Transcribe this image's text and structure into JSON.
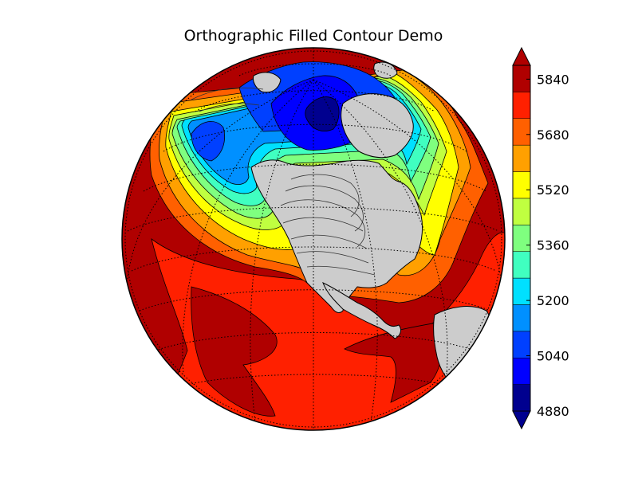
{
  "title": "Orthographic Filled Contour Demo",
  "colorbar": {
    "levels": [
      4880,
      4920,
      4960,
      5000,
      5040,
      5080,
      5120,
      5160,
      5200,
      5240,
      5280,
      5320,
      5360,
      5400,
      5440,
      5480,
      5520,
      5560,
      5600,
      5640,
      5680,
      5720,
      5760,
      5800,
      5840,
      5880
    ],
    "tick_labels": [
      "4880",
      "5040",
      "5200",
      "5360",
      "5520",
      "5680",
      "5840"
    ],
    "band_colors": [
      "#00008f",
      "#0000ff",
      "#0040ff",
      "#0090ff",
      "#00e0ff",
      "#40ffc0",
      "#7fff7f",
      "#c0ff40",
      "#ffff00",
      "#ffa000",
      "#ff6000",
      "#ff2000",
      "#b00000"
    ],
    "under_color": "#00008f",
    "over_color": "#b00000",
    "extend": "both"
  },
  "map": {
    "projection": "orthographic",
    "land_color": "#cccccc",
    "graticule": "dotted"
  }
}
